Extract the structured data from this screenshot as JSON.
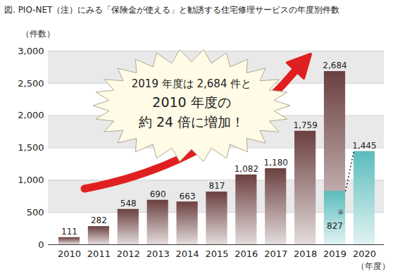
{
  "chart_data": {
    "type": "bar",
    "title": "図. PIO-NET（注）にみる「保険金が使える」と勧誘する住宅修理サービスの年度別件数",
    "x_label": "（年度）",
    "y_label": "（件数）",
    "categories": [
      "2010",
      "2011",
      "2012",
      "2013",
      "2014",
      "2015",
      "2016",
      "2017",
      "2018",
      "2019",
      "2020"
    ],
    "series": [
      {
        "color": "#6b3f3f",
        "values": [
          111,
          282,
          548,
          690,
          663,
          817,
          1082,
          1180,
          1759,
          2684,
          null
        ],
        "value_labels": [
          "111",
          "282",
          "548",
          "690",
          "663",
          "817",
          "1,082",
          "1,180",
          "1,759",
          "2,684",
          null
        ]
      },
      {
        "color": "#5bbcbc",
        "line_style": "dotted",
        "values": [
          null,
          null,
          null,
          null,
          null,
          null,
          null,
          null,
          null,
          827,
          1445
        ],
        "value_labels": [
          null,
          null,
          null,
          null,
          null,
          null,
          null,
          null,
          null,
          "827",
          "1,445"
        ]
      }
    ],
    "ylim": [
      0,
      3000
    ],
    "yticks": [
      0,
      500,
      {
        "value": 1000,
        "label": "1,000"
      },
      {
        "value": 1500,
        "label": "1,500"
      },
      {
        "value": 2000,
        "label": "2,000"
      },
      {
        "value": 2500,
        "label": "2,500"
      },
      {
        "value": 3000,
        "label": "3,000"
      }
    ],
    "grid": true,
    "data_labels": true,
    "annotations": [
      {
        "text": [
          "2019 年度は 2,684 件と",
          "2010 年度の",
          "約 24 倍に増加！"
        ]
      },
      {
        "text": "※",
        "category": "2019"
      }
    ]
  }
}
